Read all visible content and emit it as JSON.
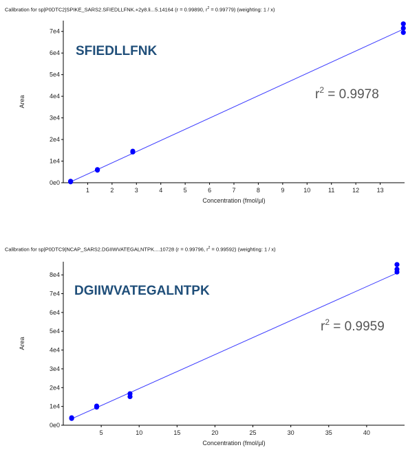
{
  "chart_data": [
    {
      "type": "scatter",
      "title": "Calibration for sp|P0DTC2|SPIKE_SARS2.SFIEDLLFNK.+2y8.li...5.14164 (r = 0.99890, r² = 0.99779)  (weighting: 1 / x)",
      "title_parts": {
        "pre": "Calibration for sp|P0DTC2|SPIKE_SARS2.SFIEDLLFNK.+2y8.li...5.14164 (r = 0.99890, r",
        "sup": "2",
        "post": " = 0.99779)  (weighting: 1 / x)"
      },
      "annotation_peptide": "SFIEDLLFNK",
      "annotation_r2_label": "r",
      "annotation_r2_sup": "2",
      "annotation_r2_value": " = 0.9978",
      "xlabel": "Concentration (fmol/µl)",
      "ylabel": "Area",
      "xlim": [
        0,
        14
      ],
      "ylim": [
        0,
        75000
      ],
      "x_ticks": [
        1,
        2,
        3,
        4,
        5,
        6,
        7,
        8,
        9,
        10,
        11,
        12,
        13
      ],
      "y_ticks": [
        0,
        10000,
        20000,
        30000,
        40000,
        50000,
        60000,
        70000
      ],
      "y_tick_labels": [
        "0e0",
        "1e4",
        "2e4",
        "3e4",
        "4e4",
        "5e4",
        "6e4",
        "7e4"
      ],
      "points": [
        {
          "x": 0.3,
          "y": 400
        },
        {
          "x": 0.3,
          "y": 700
        },
        {
          "x": 1.4,
          "y": 5800
        },
        {
          "x": 1.4,
          "y": 6100
        },
        {
          "x": 2.85,
          "y": 14200
        },
        {
          "x": 2.85,
          "y": 14600
        },
        {
          "x": 13.95,
          "y": 69500
        },
        {
          "x": 13.95,
          "y": 71500
        },
        {
          "x": 13.95,
          "y": 73500
        }
      ],
      "fit_line": {
        "x": [
          0.3,
          14
        ],
        "y": [
          400,
          71300
        ]
      },
      "colors": {
        "points": "#0000ff",
        "line": "#3a3aff",
        "peptide": "#1f4e79",
        "r2": "#555555"
      }
    },
    {
      "type": "scatter",
      "title": "Calibration for sp|P0DTC9|NCAP_SARS2.DGIIWVATEGALNTPK....10728 (r = 0.99796, r² = 0.99592)  (weighting: 1 / x)",
      "title_parts": {
        "pre": "Calibration for sp|P0DTC9|NCAP_SARS2.DGIIWVATEGALNTPK....10728 (r = 0.99796, r",
        "sup": "2",
        "post": " = 0.99592)  (weighting: 1 / x)"
      },
      "annotation_peptide": "DGIIWVATEGALNTPK",
      "annotation_r2_label": "r",
      "annotation_r2_sup": "2",
      "annotation_r2_value": " = 0.9959",
      "xlabel": "Concentration (fmol/µl)",
      "ylabel": "Area",
      "xlim": [
        0,
        45
      ],
      "ylim": [
        0,
        87000
      ],
      "x_ticks": [
        5,
        10,
        15,
        20,
        25,
        30,
        35,
        40
      ],
      "y_ticks": [
        0,
        10000,
        20000,
        30000,
        40000,
        50000,
        60000,
        70000,
        80000
      ],
      "y_tick_labels": [
        "0e0",
        "1e4",
        "2e4",
        "3e4",
        "4e4",
        "5e4",
        "6e4",
        "7e4",
        "8e4"
      ],
      "points": [
        {
          "x": 1.1,
          "y": 3600
        },
        {
          "x": 1.1,
          "y": 4000
        },
        {
          "x": 4.4,
          "y": 9600
        },
        {
          "x": 4.4,
          "y": 10200
        },
        {
          "x": 8.8,
          "y": 15200
        },
        {
          "x": 8.8,
          "y": 16800
        },
        {
          "x": 44,
          "y": 81500
        },
        {
          "x": 44,
          "y": 83000
        },
        {
          "x": 44,
          "y": 85500
        }
      ],
      "fit_line": {
        "x": [
          1.1,
          44
        ],
        "y": [
          3400,
          81000
        ]
      },
      "colors": {
        "points": "#0000ff",
        "line": "#3a3aff",
        "peptide": "#1f4e79",
        "r2": "#555555"
      }
    }
  ]
}
